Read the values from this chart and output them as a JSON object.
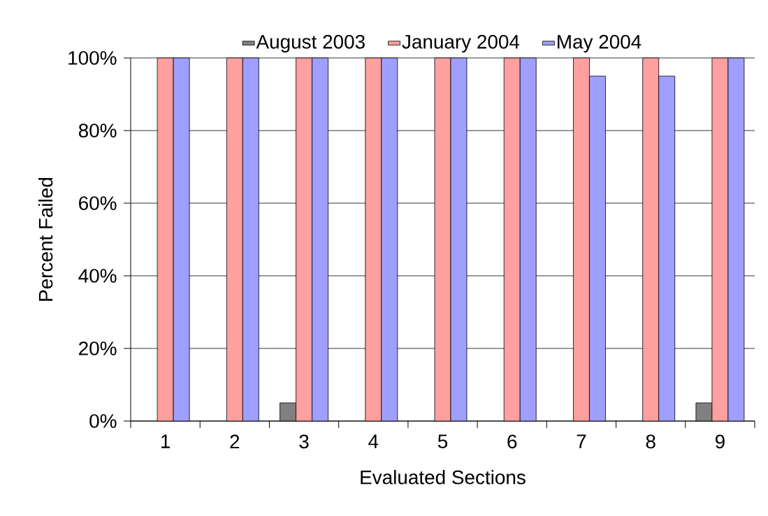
{
  "chart_data": {
    "type": "bar",
    "xlabel": "Evaluated Sections",
    "ylabel": "Percent Failed",
    "categories": [
      "1",
      "2",
      "3",
      "4",
      "5",
      "6",
      "7",
      "8",
      "9"
    ],
    "series": [
      {
        "name": "August 2003",
        "color": "#808080",
        "values": [
          0,
          0,
          5,
          0,
          0,
          0,
          0,
          0,
          5
        ]
      },
      {
        "name": "January 2004",
        "color": "#ff9f9f",
        "values": [
          100,
          100,
          100,
          100,
          100,
          100,
          100,
          100,
          100
        ]
      },
      {
        "name": "May 2004",
        "color": "#9f9fff",
        "values": [
          100,
          100,
          100,
          100,
          100,
          100,
          95,
          95,
          100
        ]
      }
    ],
    "ylim": [
      0,
      100
    ],
    "yticks": [
      {
        "value": 0,
        "label": "0%"
      },
      {
        "value": 20,
        "label": "20%"
      },
      {
        "value": 40,
        "label": "40%"
      },
      {
        "value": 60,
        "label": "60%"
      },
      {
        "value": 80,
        "label": "80%"
      },
      {
        "value": 100,
        "label": "100%"
      }
    ],
    "grid": "y",
    "legend": "top"
  }
}
